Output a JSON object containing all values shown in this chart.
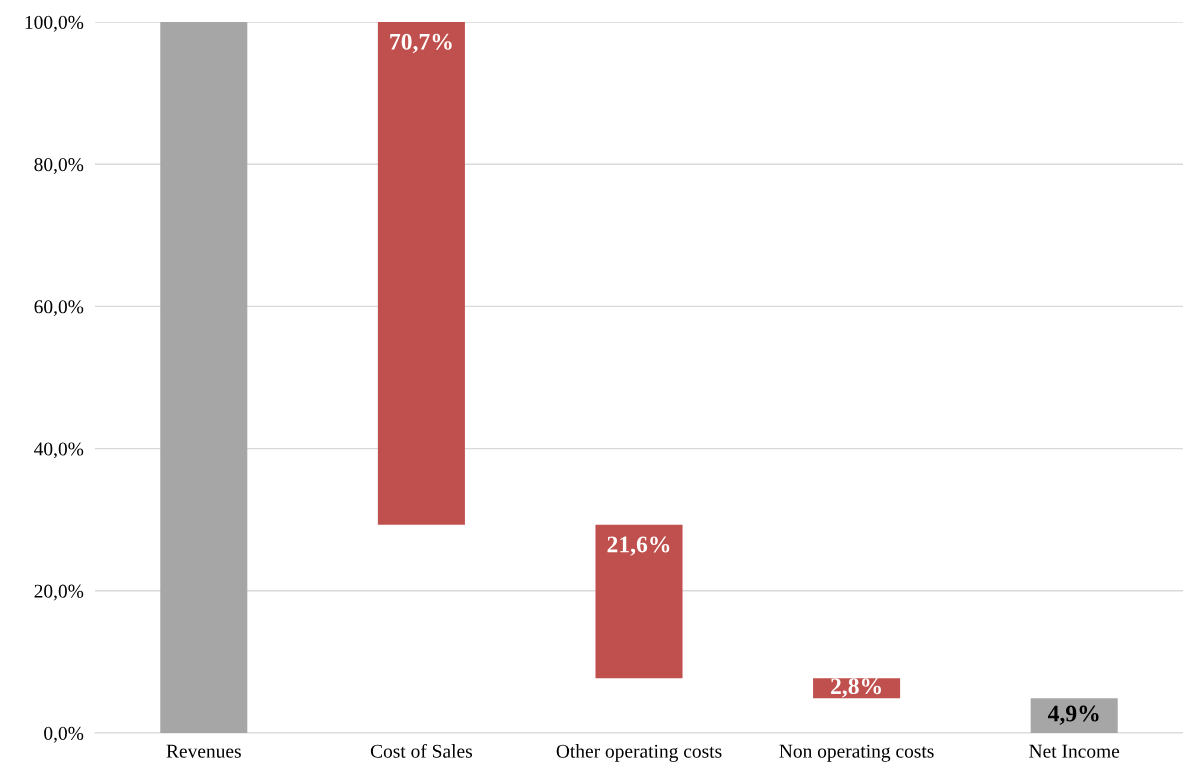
{
  "chart_data": {
    "type": "bar",
    "categories": [
      "Revenues",
      "Cost of Sales",
      "Other operating costs",
      "Non operating costs",
      "Net Income"
    ],
    "values": [
      100,
      70.7,
      21.6,
      2.8,
      4.9
    ],
    "base": [
      0,
      29.3,
      7.7,
      4.9,
      0
    ],
    "colors": [
      "#a6a6a6",
      "#c0504d",
      "#c0504d",
      "#c0504d",
      "#a6a6a6"
    ],
    "value_labels": [
      null,
      "70,7%",
      "21,6%",
      "2,8%",
      "4,9%"
    ],
    "ylim": [
      0,
      100
    ],
    "yticks": [
      {
        "value": 0,
        "label": "0,0%"
      },
      {
        "value": 20,
        "label": "20,0%"
      },
      {
        "value": 40,
        "label": "40,0%"
      },
      {
        "value": 60,
        "label": "60,0%"
      },
      {
        "value": 80,
        "label": "80,0%"
      },
      {
        "value": 100,
        "label": "100,0%"
      }
    ],
    "grid": "y"
  }
}
